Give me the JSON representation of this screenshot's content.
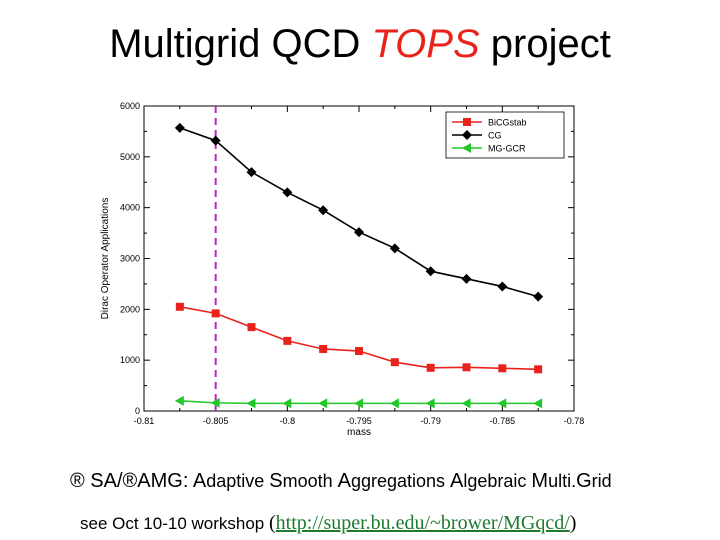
{
  "slide": {
    "title_a": "Multigrid QCD ",
    "title_b": "TOPS",
    "title_c": " project",
    "amg_prefix": "® SA/®AMG: ",
    "amg_w1": "A",
    "amg_w1b": "daptive ",
    "amg_w2": "S",
    "amg_w2b": "mooth ",
    "amg_w3": "A",
    "amg_w3b": "ggregations ",
    "amg_w4": "A",
    "amg_w4b": "lgebraic ",
    "amg_w5": "M",
    "amg_w5b": "ulti.",
    "amg_w6": "G",
    "amg_w6b": "rid",
    "workshop_prefix": "see Oct 10-10 workshop ",
    "paren_open": "(",
    "link": "http://super.bu.edu/~brower/MGqcd/",
    "paren_close": ")"
  },
  "colors": {
    "accent": "#e8231c",
    "link": "#1d7a2e",
    "bicg": "#e8231c",
    "cg": "#000000",
    "mg": "#22c82a",
    "vline": "#c020c0"
  },
  "chart_data": {
    "type": "line",
    "xlabel": "mass",
    "ylabel": "Dirac Operator Applications",
    "xlim": [
      -0.81,
      -0.78
    ],
    "ylim": [
      0,
      6000
    ],
    "x_ticks": [
      "-0.81",
      "-0.805",
      "-0.8",
      "-0.795",
      "-0.79",
      "-0.785",
      "-0.78"
    ],
    "y_ticks": [
      "0",
      "1000",
      "2000",
      "3000",
      "4000",
      "5000",
      "6000"
    ],
    "grid": false,
    "legend_position": "top-right",
    "vertical_line_x": -0.805,
    "x": [
      -0.8075,
      -0.805,
      -0.8025,
      -0.8,
      -0.7975,
      -0.795,
      -0.7925,
      -0.79,
      -0.7875,
      -0.785,
      -0.7825
    ],
    "series": [
      {
        "name": "BiCGstab",
        "marker": "square",
        "color": "#e8231c",
        "values": [
          2050,
          1920,
          1650,
          1380,
          1220,
          1180,
          960,
          850,
          860,
          840,
          820
        ]
      },
      {
        "name": "CG",
        "marker": "diamond",
        "color": "#000000",
        "values": [
          5570,
          5320,
          4700,
          4300,
          3950,
          3520,
          3200,
          2750,
          2600,
          2450,
          2250
        ]
      },
      {
        "name": "MG-GCR",
        "marker": "triangle-left",
        "color": "#22c82a",
        "values": [
          200,
          160,
          150,
          150,
          150,
          150,
          150,
          150,
          150,
          150,
          150
        ]
      }
    ]
  }
}
